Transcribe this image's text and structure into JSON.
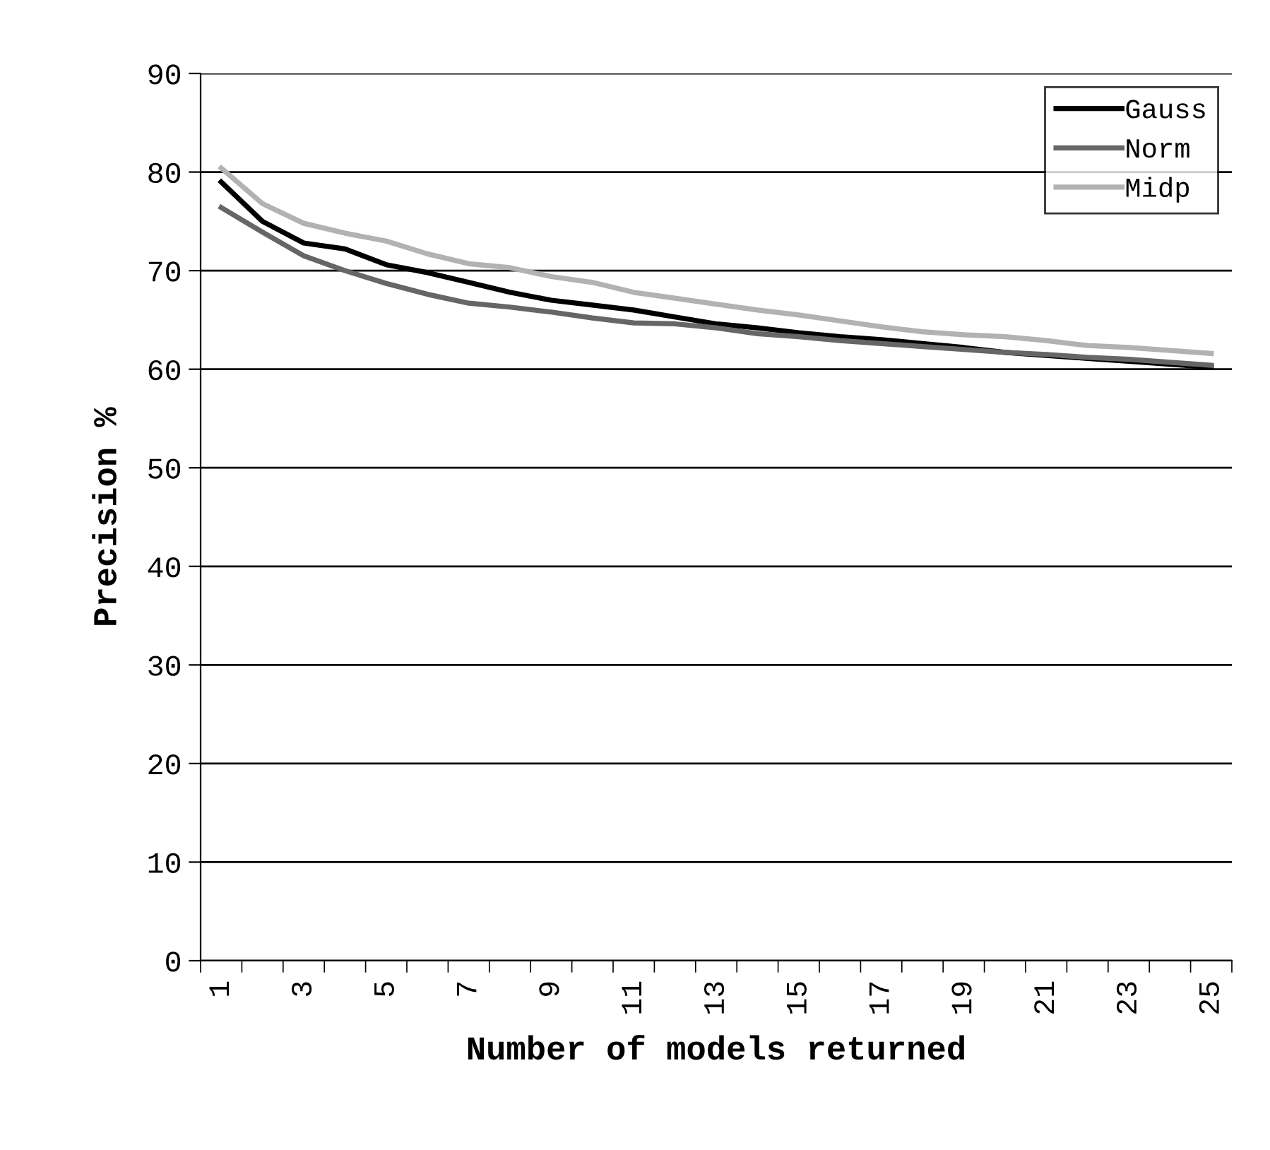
{
  "chart_data": {
    "type": "line",
    "xlabel": "Number of models returned",
    "ylabel": "Precision %",
    "categories": [
      "1",
      null,
      "3",
      null,
      "5",
      null,
      "7",
      null,
      "9",
      null,
      "11",
      null,
      "13",
      null,
      "15",
      null,
      "17",
      null,
      "19",
      null,
      "21",
      null,
      "23",
      null,
      "25"
    ],
    "series": [
      {
        "name": "Gauss",
        "color": "#000000",
        "values": [
          79,
          75,
          72.8,
          72.2,
          70.6,
          69.8,
          68.8,
          67.8,
          67,
          66.5,
          66,
          65.3,
          64.6,
          64.2,
          63.7,
          63.3,
          63,
          62.6,
          62.2,
          61.7,
          61.4,
          61.1,
          60.8,
          60.5,
          60.2
        ]
      },
      {
        "name": "Norm",
        "color": "#666666",
        "values": [
          76.4,
          73.9,
          71.5,
          70,
          68.7,
          67.6,
          66.7,
          66.3,
          65.8,
          65.2,
          64.7,
          64.6,
          64.2,
          63.6,
          63.3,
          62.9,
          62.6,
          62.3,
          62,
          61.7,
          61.5,
          61.2,
          61,
          60.7,
          60.4
        ]
      },
      {
        "name": "Midp",
        "color": "#b2b2b2",
        "values": [
          80.4,
          76.8,
          74.8,
          73.8,
          73,
          71.7,
          70.7,
          70.3,
          69.4,
          68.8,
          67.8,
          67.2,
          66.6,
          66,
          65.5,
          64.9,
          64.3,
          63.8,
          63.5,
          63.3,
          62.9,
          62.4,
          62.2,
          61.9,
          61.6
        ]
      }
    ],
    "ylim": [
      0,
      90
    ],
    "yticks": [
      0,
      10,
      20,
      30,
      40,
      50,
      60,
      70,
      80,
      90
    ],
    "grid": "y",
    "legend": "top right",
    "marker": "none",
    "line_style": "solid"
  }
}
